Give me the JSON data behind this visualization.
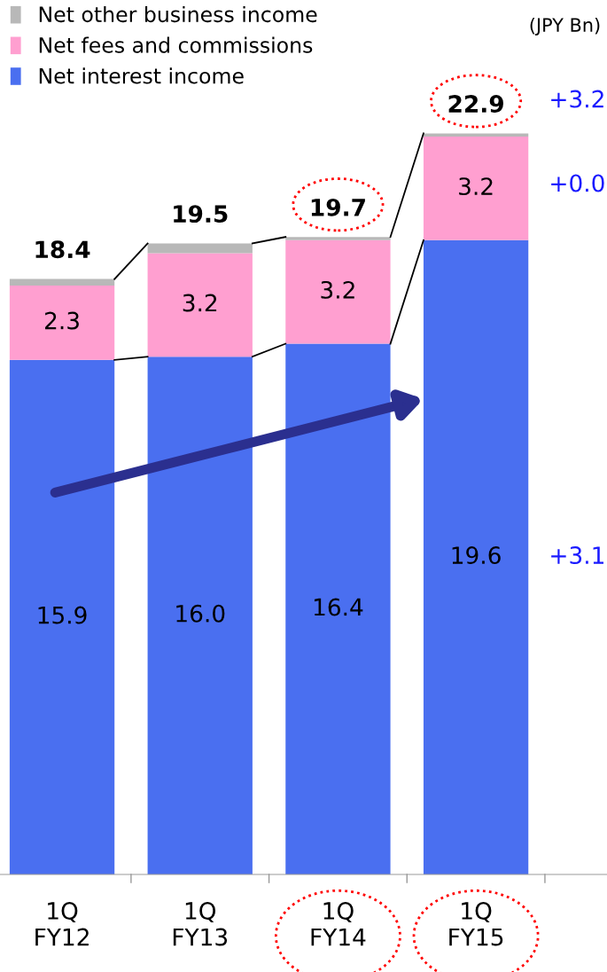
{
  "chart_data": {
    "type": "bar",
    "stacked": true,
    "categories": [
      "1Q\nFY12",
      "1Q\nFY13",
      "1Q\nFY14",
      "1Q\nFY15"
    ],
    "series": [
      {
        "name": "Net interest income",
        "color": "#4a6ff0",
        "values": [
          15.9,
          16.0,
          16.4,
          19.6
        ],
        "value_labels": [
          "15.9",
          "16.0",
          "16.4",
          "19.6"
        ]
      },
      {
        "name": "Net fees and commissions",
        "color": "#ff9fd0",
        "values": [
          2.3,
          3.2,
          3.2,
          3.2
        ],
        "value_labels": [
          "2.3",
          "3.2",
          "3.2",
          "3.2"
        ]
      },
      {
        "name": "Net other business income",
        "color": "#b8b8b8",
        "values": [
          0.2,
          0.3,
          0.1,
          0.1
        ]
      }
    ],
    "totals": [
      "18.4",
      "19.5",
      "19.7",
      "22.9"
    ],
    "tick_labels": "x",
    "grid": false,
    "legend": "top left",
    "annotations": [
      "(JPY Bn)",
      "+3.2",
      "+0.0",
      "+3.1"
    ]
  }
}
